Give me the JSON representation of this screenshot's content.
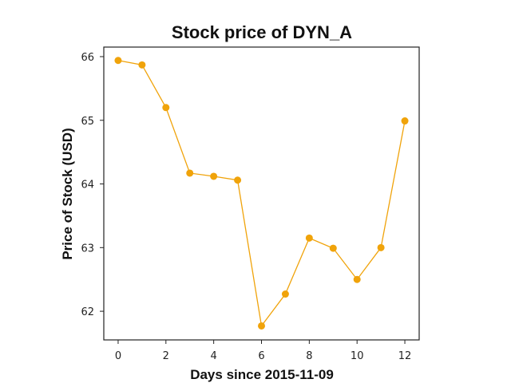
{
  "chart_data": {
    "type": "line",
    "title": "Stock price of DYN_A",
    "xlabel": "Days since 2015-11-09",
    "ylabel": "Price of Stock (USD)",
    "xlim": [
      -0.6,
      12.6
    ],
    "ylim": [
      61.55,
      66.15
    ],
    "xticks": [
      0,
      2,
      4,
      6,
      8,
      10,
      12
    ],
    "yticks": [
      62,
      63,
      64,
      65,
      66
    ],
    "grid": false,
    "series": [
      {
        "color": "#f0a30a",
        "x": [
          0,
          1,
          2,
          3,
          4,
          5,
          6,
          7,
          8,
          9,
          10,
          11,
          12
        ],
        "y": [
          65.94,
          65.87,
          65.2,
          64.17,
          64.12,
          64.06,
          61.77,
          62.27,
          63.15,
          62.99,
          62.5,
          63.0,
          64.99
        ]
      }
    ]
  }
}
